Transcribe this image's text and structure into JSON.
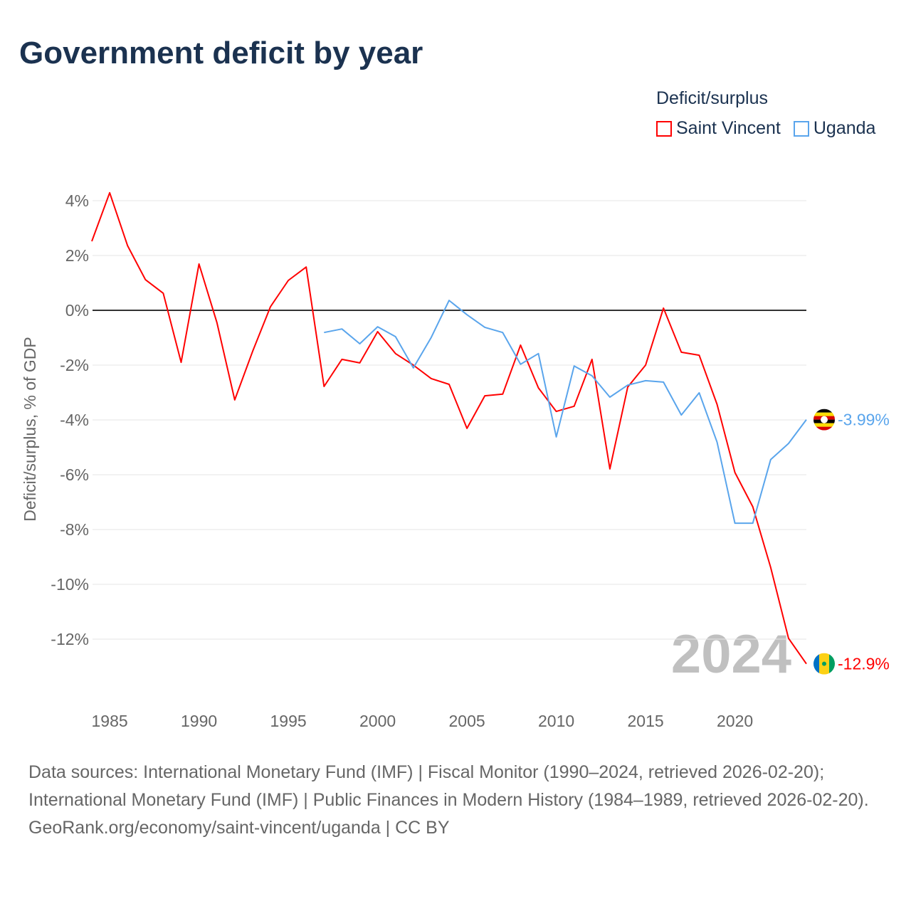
{
  "title": "Government deficit by year",
  "legend": {
    "title": "Deficit/surplus",
    "items": [
      {
        "label": "Saint Vincent",
        "color": "#ff0000"
      },
      {
        "label": "Uganda",
        "color": "#5aa5ec"
      }
    ]
  },
  "chart_data": {
    "type": "line",
    "title": "Government deficit by year",
    "xlabel": "",
    "ylabel": "Deficit/surplus, % of GDP",
    "xlim": [
      1984,
      2024
    ],
    "ylim": [
      -14,
      4.5
    ],
    "x_ticks": [
      1985,
      1990,
      1995,
      2000,
      2005,
      2010,
      2015,
      2020
    ],
    "y_ticks": [
      4,
      2,
      0,
      -2,
      -4,
      -6,
      -8,
      -10,
      -12
    ],
    "y_tick_labels": [
      "4%",
      "2%",
      "0%",
      "-2%",
      "-4%",
      "-6%",
      "-8%",
      "-10%",
      "-12%"
    ],
    "watermark_year": "2024",
    "series": [
      {
        "name": "Saint Vincent",
        "color": "#ff0000",
        "end_label": "-12.9%",
        "start_year": 1984,
        "values": [
          2.52,
          4.29,
          2.36,
          1.12,
          0.62,
          -1.9,
          1.69,
          -0.44,
          -3.27,
          -1.5,
          0.13,
          1.09,
          1.58,
          -2.78,
          -1.79,
          -1.92,
          -0.78,
          -1.58,
          -2.0,
          -2.49,
          -2.7,
          -4.31,
          -3.12,
          -3.06,
          -1.27,
          -2.83,
          -3.69,
          -3.5,
          -1.79,
          -5.79,
          -2.8,
          -2.0,
          0.08,
          -1.53,
          -1.64,
          -3.43,
          -5.92,
          -7.17,
          -9.38,
          -11.97,
          -12.9
        ]
      },
      {
        "name": "Uganda",
        "color": "#5aa5ec",
        "end_label": "-3.99%",
        "start_year": 1997,
        "values": [
          -0.81,
          -0.68,
          -1.22,
          -0.6,
          -0.96,
          -2.1,
          -0.99,
          0.36,
          -0.16,
          -0.62,
          -0.81,
          -1.97,
          -1.58,
          -4.62,
          -2.03,
          -2.39,
          -3.17,
          -2.73,
          -2.57,
          -2.62,
          -3.82,
          -3.01,
          -4.81,
          -7.77,
          -7.77,
          -5.45,
          -4.86,
          -3.99
        ]
      }
    ]
  },
  "footer": {
    "sources": "Data sources: International Monetary Fund (IMF) | Fiscal Monitor (1990–2024, retrieved 2026-02-20); International Monetary Fund (IMF) | Public Finances in Modern History (1984–1989, retrieved 2026-02-20).",
    "credit": "GeoRank.org/economy/saint-vincent/uganda | CC BY"
  }
}
